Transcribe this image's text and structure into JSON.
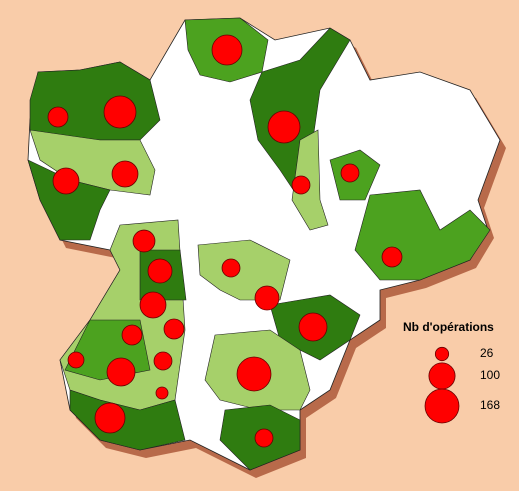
{
  "map": {
    "circle_color": "#ff0000",
    "circles": {
      "values": [
        131,
        58,
        149,
        149,
        98,
        98,
        47,
        47,
        70,
        84,
        47,
        84,
        98,
        114,
        58,
        58,
        37,
        114,
        47,
        168,
        21,
        131,
        47,
        58
      ]
    },
    "legend": {
      "title": "Nb d'opérations",
      "values": [
        26,
        100,
        168
      ]
    }
  }
}
